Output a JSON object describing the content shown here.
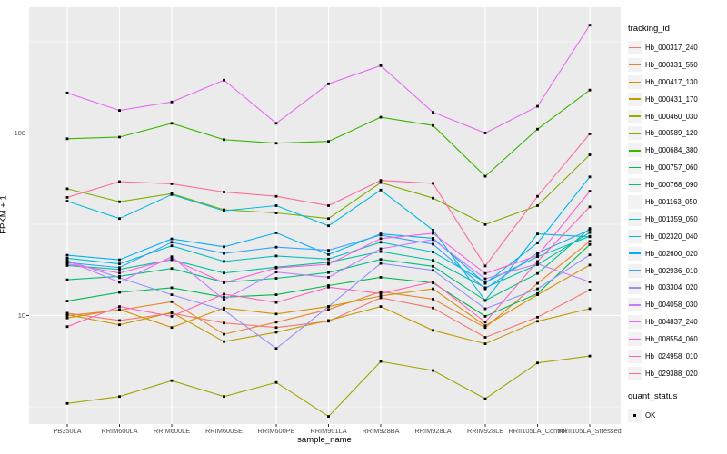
{
  "chart_data": {
    "type": "line",
    "title": "",
    "xlabel": "sample_name",
    "ylabel": "FPKM + 1",
    "y_scale": "log10",
    "ylim": [
      2.5,
      490
    ],
    "grid": true,
    "panel_bg": "#EBEBEB",
    "grid_color": "#FFFFFF",
    "point_shape": "filled-square-black",
    "legend_position": "right",
    "legend_title": "tracking_id",
    "legend2_title": "quant_status",
    "legend2_items": [
      "OK"
    ],
    "y_ticks": [
      {
        "label": "100",
        "value": 100
      },
      {
        "label": "10",
        "value": 10
      }
    ],
    "y_minor_breaks": [
      316.23,
      31.623,
      3.1623
    ],
    "categories": [
      "PB350LA",
      "RRIM600LA",
      "RRIM600LE",
      "RRIM600SE",
      "RRIM600PE",
      "RRIM901LA",
      "RRIM928BA",
      "RRIM928LA",
      "RRIM928LE",
      "RRII105LA_Control",
      "RRII105LA_Stressed"
    ],
    "series": [
      {
        "id": "Hb_000317_240",
        "color": "#F8766D",
        "values": [
          10.3,
          9.4,
          10.3,
          9.1,
          8.6,
          9.3,
          12.5,
          11.0,
          7.6,
          9.8,
          13.8
        ]
      },
      {
        "id": "Hb_000331_550",
        "color": "#EA8331",
        "values": [
          10.0,
          10.7,
          11.9,
          7.9,
          9.2,
          10.8,
          13.5,
          12.3,
          8.6,
          15.0,
          25.5
        ]
      },
      {
        "id": "Hb_000417_130",
        "color": "#D89000",
        "values": [
          9.7,
          10.8,
          8.6,
          11.0,
          10.2,
          11.2,
          12.8,
          14.0,
          8.8,
          13.0,
          18.9
        ]
      },
      {
        "id": "Hb_000431_170",
        "color": "#C09B00",
        "values": [
          10.1,
          8.9,
          10.4,
          7.2,
          8.1,
          9.4,
          11.2,
          8.3,
          7.0,
          9.3,
          10.9
        ]
      },
      {
        "id": "Hb_000460_030",
        "color": "#A3A500",
        "values": [
          3.3,
          3.6,
          4.4,
          3.6,
          4.3,
          2.8,
          5.6,
          5.0,
          3.5,
          5.5,
          6.0
        ]
      },
      {
        "id": "Hb_000589_120",
        "color": "#7CAE00",
        "values": [
          49.5,
          42.0,
          46.5,
          38.0,
          36.5,
          34.0,
          53.5,
          44.0,
          31.5,
          40.0,
          76.0
        ]
      },
      {
        "id": "Hb_000684_380",
        "color": "#39B600",
        "values": [
          93,
          95,
          113,
          92,
          88,
          90,
          122,
          110,
          58,
          105,
          172
        ]
      },
      {
        "id": "Hb_000757_060",
        "color": "#00BB4E",
        "values": [
          12.0,
          13.4,
          14.2,
          12.6,
          13.0,
          14.6,
          16.2,
          15.1,
          9.9,
          13.2,
          24.5
        ]
      },
      {
        "id": "Hb_000768_090",
        "color": "#00BF7D",
        "values": [
          15.7,
          16.4,
          18.1,
          15.2,
          16.0,
          17.2,
          20.3,
          18.6,
          12.1,
          17.0,
          30.0
        ]
      },
      {
        "id": "Hb_001163_050",
        "color": "#00C1A3",
        "values": [
          18.8,
          17.9,
          20.2,
          17.1,
          18.4,
          19.6,
          22.4,
          20.1,
          14.2,
          19.0,
          28.5
        ]
      },
      {
        "id": "Hb_001359_050",
        "color": "#00BFC4",
        "values": [
          20.6,
          19.2,
          24.1,
          19.8,
          21.2,
          20.4,
          25.2,
          22.3,
          15.2,
          21.0,
          27.2
        ]
      },
      {
        "id": "Hb_002320_040",
        "color": "#00BAE0",
        "values": [
          42.3,
          34.0,
          46.0,
          37.5,
          40.0,
          31.0,
          48.7,
          29.4,
          12.1,
          28.0,
          27.0
        ]
      },
      {
        "id": "Hb_002600_020",
        "color": "#00B0F6",
        "values": [
          21.4,
          20.2,
          26.3,
          23.8,
          28.4,
          21.6,
          28.0,
          26.5,
          15.0,
          25.0,
          57.5
        ]
      },
      {
        "id": "Hb_002936_010",
        "color": "#35A2FF",
        "values": [
          19.5,
          18.3,
          25.2,
          21.9,
          23.7,
          22.8,
          27.6,
          24.6,
          14.0,
          22.0,
          29.5
        ]
      },
      {
        "id": "Hb_003304_020",
        "color": "#9590FF",
        "values": [
          20.0,
          16.1,
          13.0,
          10.7,
          6.6,
          11.2,
          19.3,
          17.7,
          10.9,
          14.0,
          21.5
        ]
      },
      {
        "id": "Hb_004058_030",
        "color": "#C77CFF",
        "values": [
          19.9,
          15.2,
          21.0,
          12.2,
          17.3,
          16.2,
          23.2,
          26.1,
          15.9,
          19.2,
          15.3
        ]
      },
      {
        "id": "Hb_004837_240",
        "color": "#E76BF3",
        "values": [
          166,
          133,
          148,
          195,
          113,
          186,
          234,
          130,
          100,
          140,
          390
        ]
      },
      {
        "id": "Hb_008554_060",
        "color": "#FA62DB",
        "values": [
          19.2,
          17.1,
          20.4,
          15.1,
          18.2,
          19.1,
          26.4,
          28.2,
          17.0,
          21.3,
          48.0
        ]
      },
      {
        "id": "Hb_024958_010",
        "color": "#FF62BC",
        "values": [
          8.7,
          11.2,
          9.9,
          13.1,
          11.8,
          14.3,
          13.2,
          15.3,
          9.2,
          19.8,
          39.4
        ]
      },
      {
        "id": "Hb_029388_020",
        "color": "#FF6A98",
        "values": [
          44.4,
          54.2,
          52.7,
          47.5,
          45.0,
          40.0,
          55.0,
          53.0,
          18.7,
          45.0,
          99.0
        ]
      }
    ]
  }
}
